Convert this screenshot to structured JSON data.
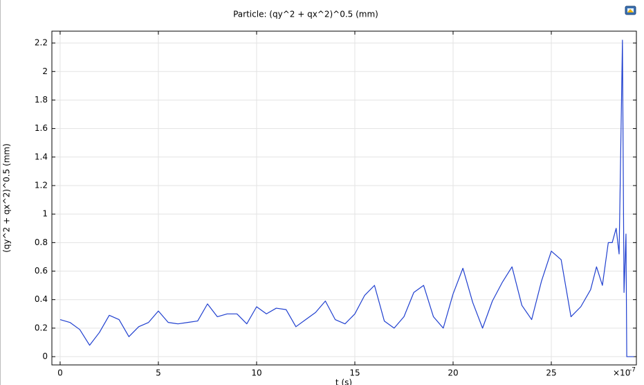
{
  "chart_data": {
    "type": "line",
    "title": "Particle: (qy^2 + qx^2)^0.5 (mm)",
    "x_label": "t (s)",
    "y_label": "(qy^2 + qx^2)^0.5 (mm)",
    "x_multiplier": "×10",
    "x_exponent": "-7",
    "x": [
      0,
      0.5,
      1,
      1.5,
      2,
      2.5,
      3,
      3.5,
      4,
      4.5,
      5,
      5.5,
      6,
      6.5,
      7,
      7.5,
      8,
      8.5,
      9,
      9.5,
      10,
      10.5,
      11,
      11.5,
      12,
      12.5,
      13,
      13.5,
      14,
      14.5,
      15,
      15.5,
      16,
      16.5,
      17,
      17.5,
      18,
      18.5,
      19,
      19.5,
      20,
      20.5,
      21,
      21.5,
      22,
      22.5,
      23,
      23.5,
      24,
      24.5,
      25,
      25.5,
      26,
      26.5,
      27,
      27.3,
      27.6,
      27.9,
      28.1,
      28.3,
      28.45,
      28.55,
      28.62,
      28.7,
      28.8,
      28.84,
      29.2
    ],
    "series": [
      {
        "color": "#1f3fcf",
        "values": [
          0.26,
          0.24,
          0.19,
          0.08,
          0.17,
          0.29,
          0.26,
          0.14,
          0.21,
          0.24,
          0.32,
          0.24,
          0.23,
          0.24,
          0.25,
          0.37,
          0.28,
          0.3,
          0.3,
          0.23,
          0.35,
          0.3,
          0.34,
          0.33,
          0.21,
          0.26,
          0.31,
          0.39,
          0.26,
          0.23,
          0.3,
          0.43,
          0.5,
          0.25,
          0.2,
          0.28,
          0.45,
          0.5,
          0.28,
          0.2,
          0.44,
          0.62,
          0.38,
          0.2,
          0.39,
          0.52,
          0.63,
          0.36,
          0.26,
          0.53,
          0.74,
          0.68,
          0.28,
          0.35,
          0.47,
          0.63,
          0.5,
          0.8,
          0.8,
          0.9,
          0.72,
          1.6,
          2.22,
          0.45,
          0.86,
          0,
          0
        ]
      }
    ],
    "xlim": [
      -0.42,
      29.33
    ],
    "ylim": [
      -0.058,
      2.283
    ],
    "xticks": [
      0,
      5,
      10,
      15,
      20,
      25
    ],
    "yticks": [
      0,
      0.2,
      0.4,
      0.6,
      0.8,
      1,
      1.2,
      1.4,
      1.6,
      1.8,
      2,
      2.2
    ],
    "grid": true
  }
}
